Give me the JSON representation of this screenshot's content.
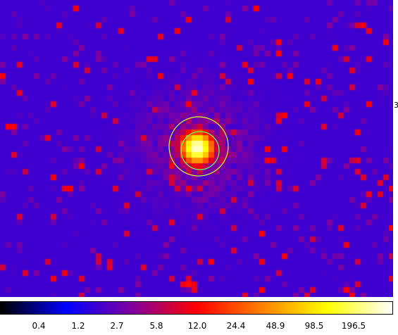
{
  "viewer": {
    "colormap": "heat-blue",
    "colors": {
      "background": "#0000ff",
      "region_outer": "#ccff33",
      "region_inner": "#66ff66"
    },
    "right_edge_glyph": "3"
  },
  "colorbar": {
    "stops": [
      "#000000",
      "#0000ff",
      "#8000a0",
      "#ff0000",
      "#ff8000",
      "#ffff00",
      "#ffffff"
    ],
    "tick_labels": [
      "0.4",
      "1.2",
      "2.7",
      "5.8",
      "12.0",
      "24.4",
      "48.9",
      "98.5",
      "196.5"
    ]
  }
}
